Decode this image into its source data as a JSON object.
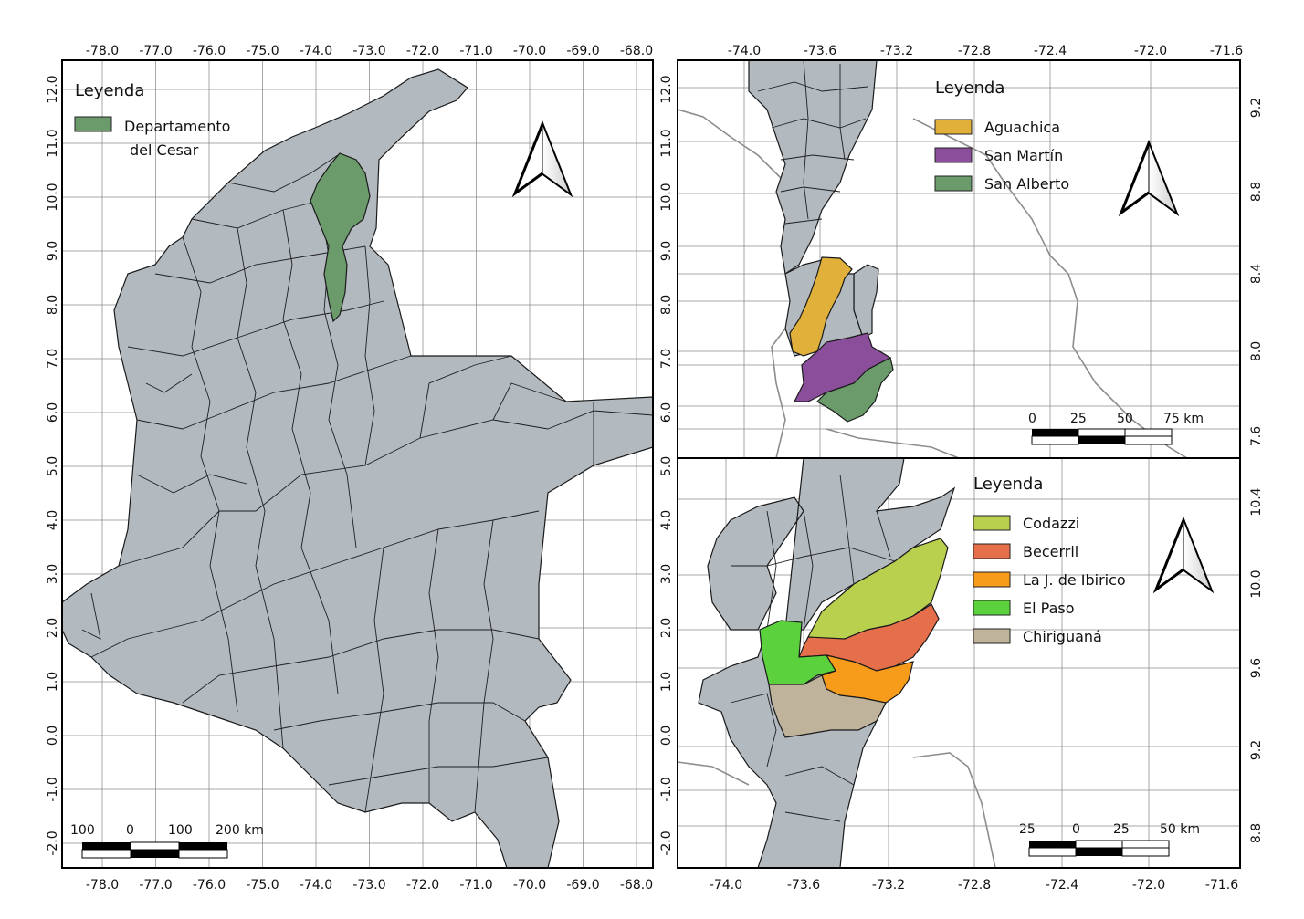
{
  "colors": {
    "land": "#b2b9bf",
    "cesar": "#6b9a6b",
    "aguachica": "#e0b03a",
    "san_martin": "#8a4e9a",
    "san_alberto": "#6b9a6b",
    "codazzi": "#b9cf4e",
    "becerril": "#e56f4a",
    "la_jagua": "#f79b1b",
    "el_paso": "#5bd13e",
    "chiriguana": "#bfb39b"
  },
  "panel_main": {
    "legend": {
      "title": "Leyenda",
      "items": [
        {
          "label_line1": "Departamento",
          "label_line2": "del Cesar",
          "color_key": "cesar"
        }
      ]
    },
    "x_ticks": [
      "-78.0",
      "-77.0",
      "-76.0",
      "-75.0",
      "-74.0",
      "-73.0",
      "-72.0",
      "-71.0",
      "-70.0",
      "-69.0",
      "-68.0"
    ],
    "y_ticks": [
      "12.0",
      "11.0",
      "10.0",
      "9.0",
      "8.0",
      "7.0",
      "6.0",
      "5.0",
      "4.0",
      "3.0",
      "2.0",
      "1.0",
      "0.0",
      "-1.0",
      "-2.0"
    ],
    "scalebar": {
      "labels": [
        "100",
        "0",
        "100",
        "200 km"
      ]
    },
    "north_arrow": "north-arrow-icon"
  },
  "panel_top_right": {
    "legend": {
      "title": "Leyenda",
      "items": [
        {
          "label": "Aguachica",
          "color_key": "aguachica"
        },
        {
          "label": "San Martín",
          "color_key": "san_martin"
        },
        {
          "label": "San Alberto",
          "color_key": "san_alberto"
        }
      ]
    },
    "x_ticks": [
      "-74.0",
      "-73.6",
      "-73.2",
      "-72.8",
      "-72.4",
      "-72.0",
      "-71.6"
    ],
    "y_ticks_right": [
      "9.2",
      "8.8",
      "8.4",
      "8.0",
      "7.6"
    ],
    "scalebar": {
      "labels": [
        "0",
        "25",
        "50",
        "75 km"
      ]
    },
    "north_arrow": "north-arrow-icon"
  },
  "panel_bottom_right": {
    "legend": {
      "title": "Leyenda",
      "items": [
        {
          "label": "Codazzi",
          "color_key": "codazzi"
        },
        {
          "label": "Becerril",
          "color_key": "becerril"
        },
        {
          "label": "La J. de Ibirico",
          "color_key": "la_jagua"
        },
        {
          "label": "El Paso",
          "color_key": "el_paso"
        },
        {
          "label": "Chiriguaná",
          "color_key": "chiriguana"
        }
      ]
    },
    "x_ticks": [
      "-74.0",
      "-73.6",
      "-73.2",
      "-72.8",
      "-72.4",
      "-72.0",
      "-71.6"
    ],
    "y_ticks_right": [
      "10.4",
      "10.0",
      "9.6",
      "9.2",
      "8.8"
    ],
    "scalebar": {
      "labels": [
        "25",
        "0",
        "25",
        "50 km"
      ]
    },
    "north_arrow": "north-arrow-icon"
  }
}
